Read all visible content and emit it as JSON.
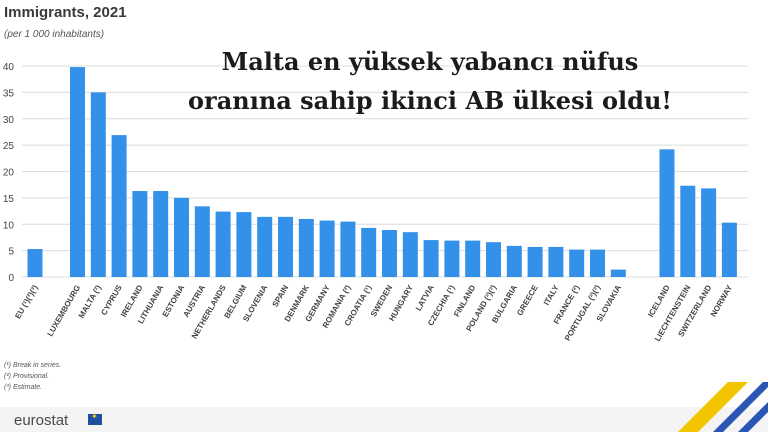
{
  "headline": [
    "Malta en yüksek yabancı nüfus",
    "oranına sahip ikinci AB ülkesi oldu!"
  ],
  "source_logo": "eurostat",
  "colors": {
    "bar": "#3391ea",
    "grid": "#dcdcdc",
    "text": "#444444"
  },
  "notes": [
    "(¹) Break in series.",
    "(²) Provisional.",
    "(³) Estimate."
  ],
  "chart_data": {
    "type": "bar",
    "title": "Immigrants, 2021",
    "subtitle": "(per 1 000 inhabitants)",
    "xlabel": "",
    "ylabel": "",
    "ylim": [
      0,
      40
    ],
    "yticks": [
      0,
      5,
      10,
      15,
      20,
      25,
      30,
      35,
      40
    ],
    "grid": true,
    "categories": [
      "EU (¹)(²)(³)",
      "LUXEMBOURG",
      "MALTA (²)",
      "CYPRUS",
      "IRELAND",
      "LITHUANIA",
      "ESTONIA",
      "AUSTRIA",
      "NETHERLANDS",
      "BELGIUM",
      "SLOVENIA",
      "SPAIN",
      "DENMARK",
      "GERMANY",
      "ROMANIA (²)",
      "CROATIA (¹)",
      "SWEDEN",
      "HUNGARY",
      "LATVIA",
      "CZECHIA (¹)",
      "FINLAND",
      "POLAND (²)(³)",
      "BULGARIA",
      "GREECE",
      "ITALY",
      "FRANCE (²)",
      "PORTUGAL (²)(³)",
      "SLOVAKIA",
      "ICELAND",
      "LIECHTENSTEIN",
      "SWITZERLAND",
      "NORWAY"
    ],
    "values": [
      5.3,
      39.8,
      35.0,
      26.9,
      16.3,
      16.3,
      15.0,
      13.4,
      12.4,
      12.3,
      11.4,
      11.4,
      11.0,
      10.7,
      10.5,
      9.3,
      8.9,
      8.5,
      7.0,
      6.9,
      6.9,
      6.6,
      5.9,
      5.7,
      5.7,
      5.2,
      5.2,
      1.4,
      24.2,
      17.3,
      16.8,
      10.3
    ]
  }
}
